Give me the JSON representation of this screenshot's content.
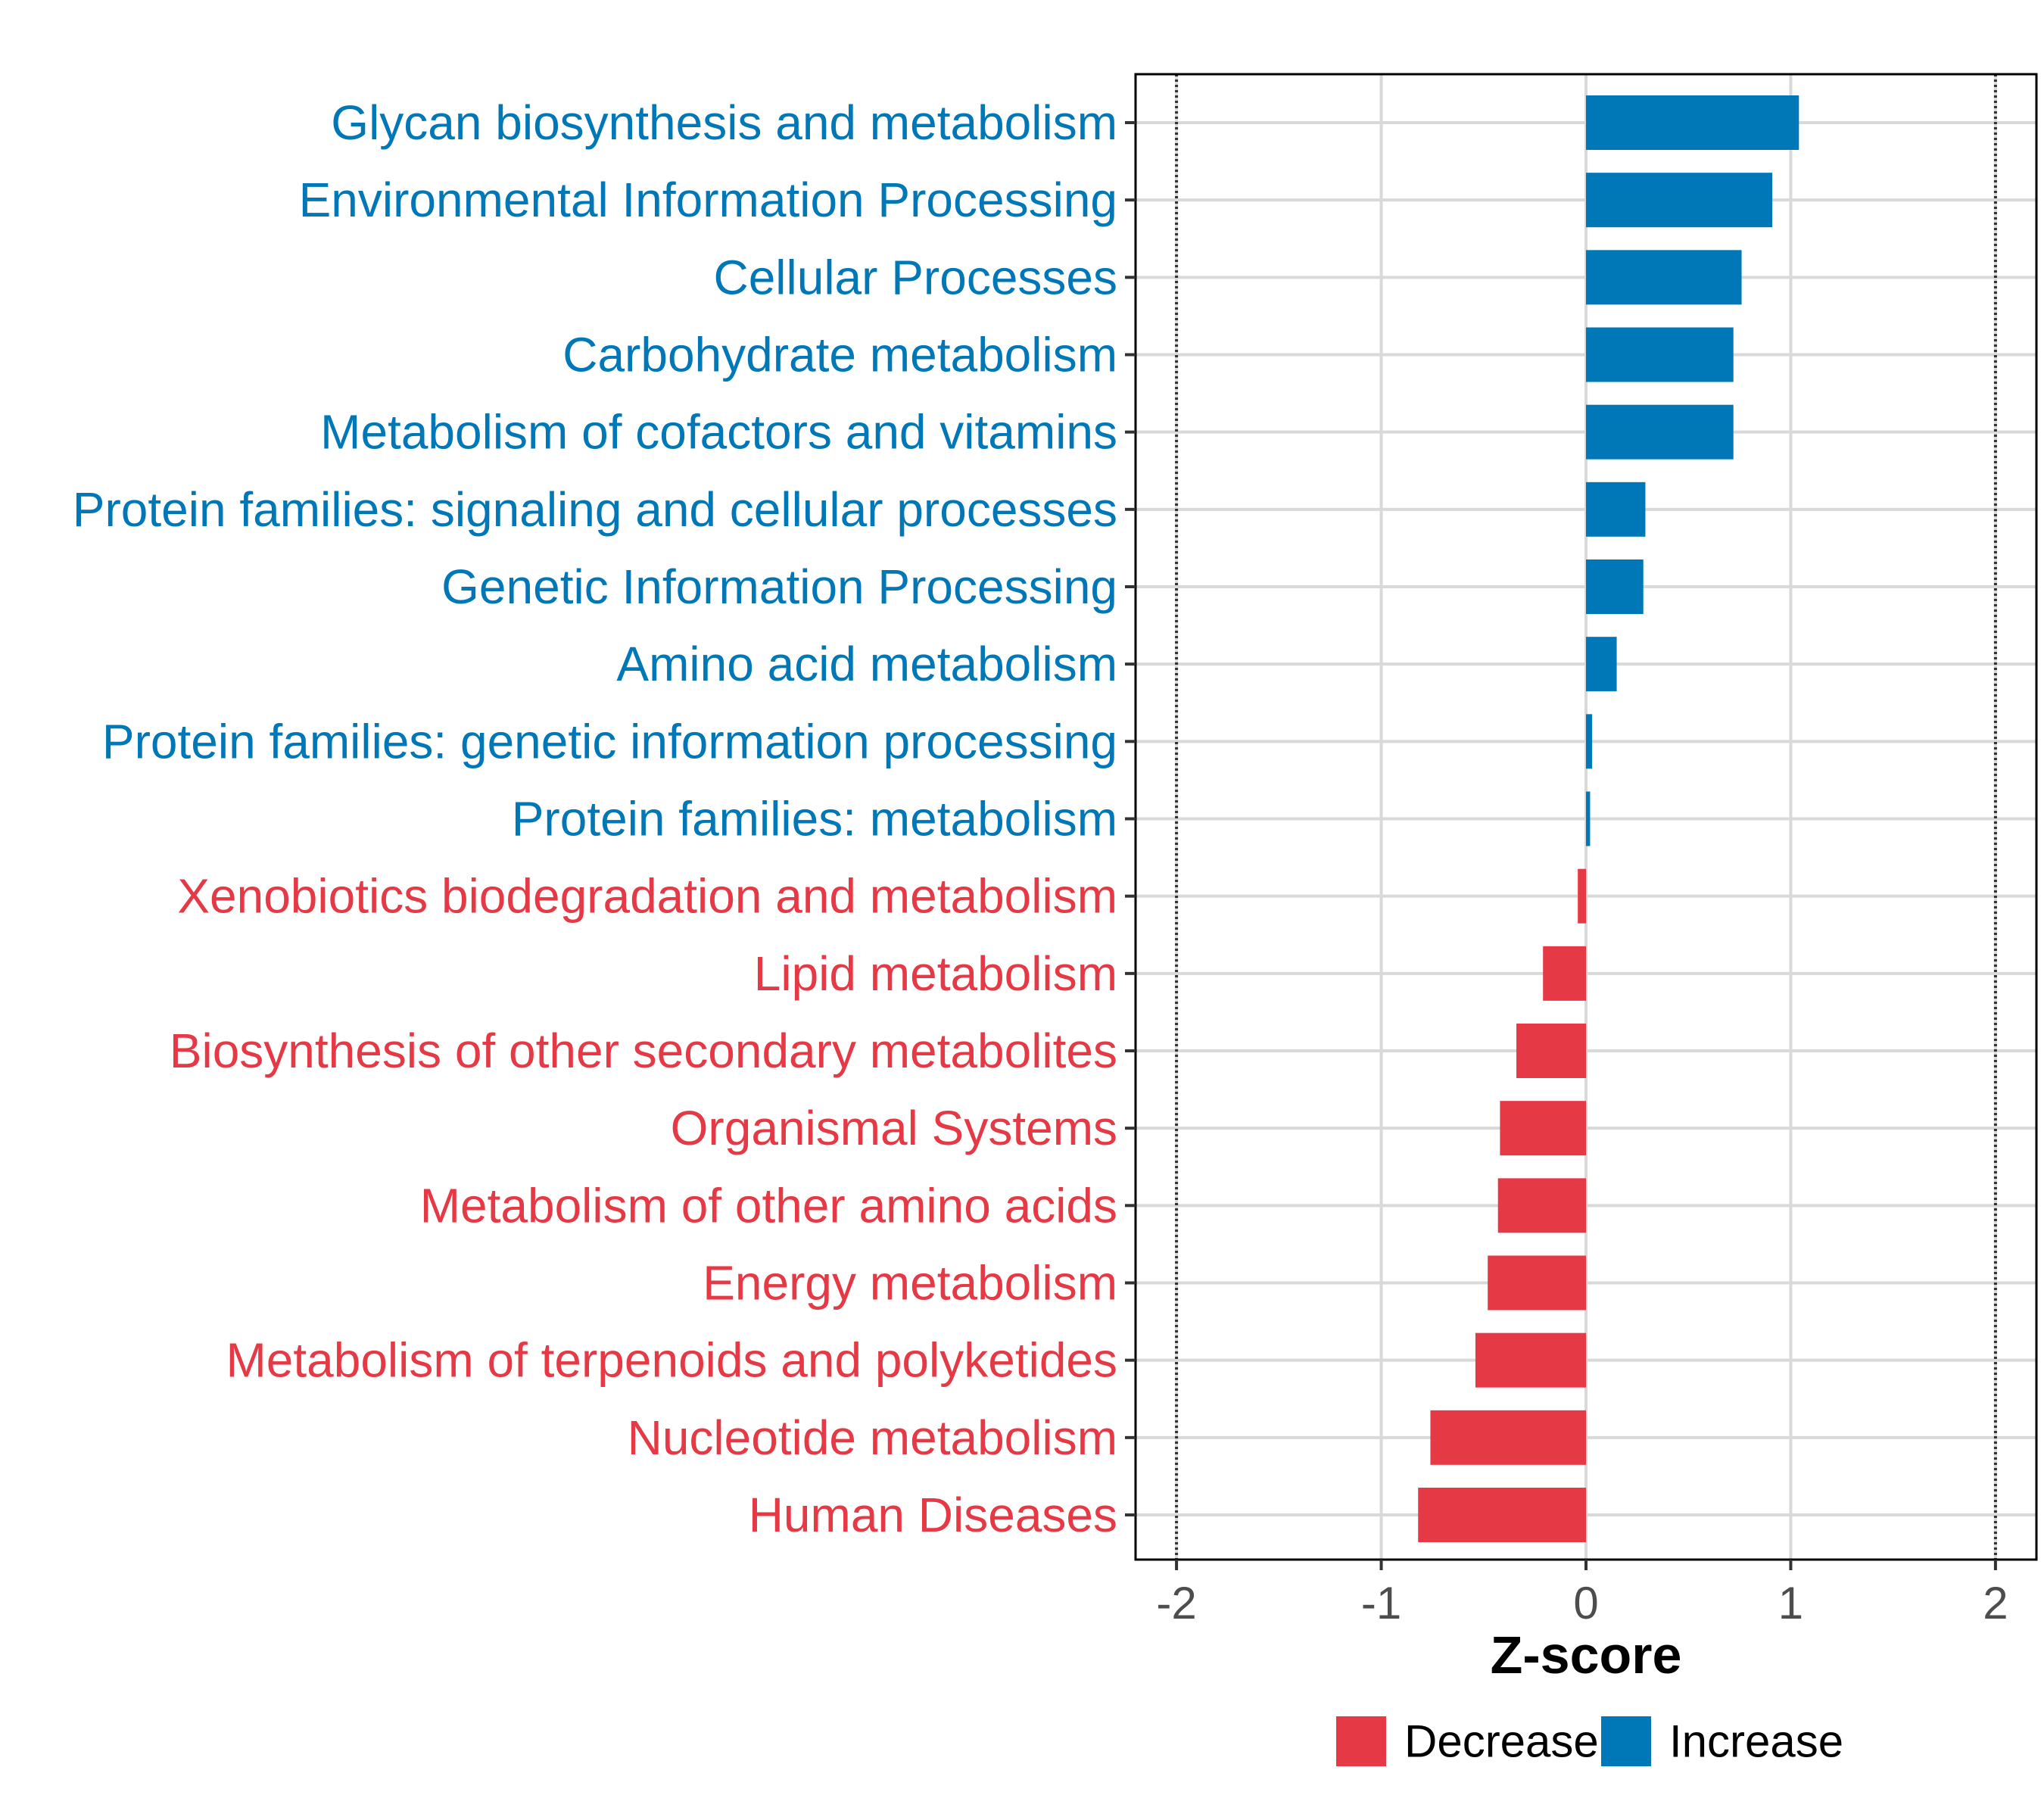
{
  "chart_data": {
    "type": "bar",
    "orientation": "horizontal",
    "xlabel": "Z-score",
    "xlim": [
      -2.2,
      2.2
    ],
    "xticks": [
      -2,
      -1,
      0,
      1,
      2
    ],
    "xtick_labels": [
      "-2",
      "-1",
      "0",
      "1",
      "2"
    ],
    "reference_lines": [
      -2,
      2
    ],
    "grid": true,
    "legend_position": "bottom",
    "legend": [
      {
        "name": "Decrease",
        "color": "#e63946"
      },
      {
        "name": "Increase",
        "color": "#0077b6"
      }
    ],
    "categories": [
      "Glycan biosynthesis and metabolism",
      "Environmental Information Processing",
      "Cellular Processes",
      "Carbohydrate metabolism",
      "Metabolism of cofactors and vitamins",
      "Protein families: signaling and cellular processes",
      "Genetic Information Processing",
      "Amino acid metabolism",
      "Protein families: genetic information processing",
      "Protein families: metabolism",
      "Xenobiotics biodegradation and metabolism",
      "Lipid metabolism",
      "Biosynthesis of other secondary metabolites",
      "Organismal Systems",
      "Metabolism of other amino acids",
      "Energy metabolism",
      "Metabolism of terpenoids and polyketides",
      "Nucleotide metabolism",
      "Human Diseases"
    ],
    "values": [
      1.04,
      0.91,
      0.76,
      0.72,
      0.72,
      0.29,
      0.28,
      0.15,
      0.03,
      0.02,
      -0.04,
      -0.21,
      -0.34,
      -0.42,
      -0.43,
      -0.48,
      -0.54,
      -0.76,
      -0.82
    ],
    "groups": [
      "Increase",
      "Increase",
      "Increase",
      "Increase",
      "Increase",
      "Increase",
      "Increase",
      "Increase",
      "Increase",
      "Increase",
      "Decrease",
      "Decrease",
      "Decrease",
      "Decrease",
      "Decrease",
      "Decrease",
      "Decrease",
      "Decrease",
      "Decrease"
    ]
  }
}
